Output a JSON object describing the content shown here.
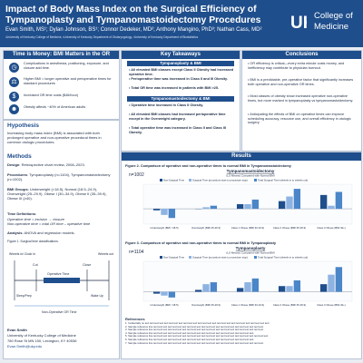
{
  "header": {
    "title": "Impact of Body Mass Index on the Surgical Efficiency of Tympanoplasty and Tympanomastoidectomy Procedures",
    "authors": "Evan Smith, MS¹; Dylan Johnson, BS¹; Connor Dedeker, MD²; Anthony Mangino, PhD³; Nathan Cass, MD²",
    "affiliations": "¹University of Kentucky College of Medicine, ²University of Kentucky Department of Otolaryngology, ³University of Kentucky Department of Biostatistics",
    "logo_line1": "College of",
    "logo_line2": "Medicine",
    "logo_icon": "uk-logo-icon"
  },
  "left": {
    "time_head": "Time is Money: BMI Matters in the OR",
    "time_bullets": [
      "Complications in anesthesia, positioning, exposure, and closure add time.",
      "Higher BMI = longer operative and perioperative times for standard procedures",
      "Increased OR time costs ($46/hour)",
      "Obesity affects ~40% of American adults"
    ],
    "hypothesis_head": "Hypothesis",
    "hypothesis_text": "Increasing body mass index (BMI) is associated with both prolonged operative and non-operative procedural times in common otologic procedures.",
    "methods_head": "Methods",
    "design_label": "Design",
    "design_text": ": Retrospective chart review, 2008–2023.",
    "procedures_label": "Procedures",
    "procedures_text": ": Tympanoplasty (n=1104), Tympanomastoidectomy (n=1002).",
    "groups_label": "BMI Groups",
    "groups_text": ": Underweight (<18.5), Normal (18.5–24.9), Overweight (25–29.9), Obese I (30–34.9), Obese II (35–39.9), Obese III (≥40).",
    "timedef_label": "Time Definitions",
    "timedef_1": "Operative time = incision → closure",
    "timedef_2": "Non-operative time = total OR time – operative time",
    "analysis_label": "Analysis",
    "analysis_text": ": ANOVA and regression models.",
    "fig_caption": "Figure 1. Surgical time classifications.",
    "fig_labels": {
      "in_room": "Wheels in/ Clock In",
      "out_room": "Wheels out",
      "cut": "Cut",
      "close": "Close",
      "operative": "Operative Time",
      "sleep": "Sleep/Prep",
      "wake": "Wake Up",
      "nonop": "Non-Operative OR Time"
    },
    "contact_name": "Evan Smith",
    "contact_lines": [
      "University of Kentucky College of Medicine",
      "780 Rose St MN 150, Lexington, KY 40536",
      "Evan.Smith@uky.edu"
    ]
  },
  "mid": {
    "head": "Key Takeaways",
    "tymp_head": "Tympanoplasty & BMI",
    "tymp_bullets": [
      "All elevated BMI classes except Class II Obesity had increased operative time.",
      "Perioperative time was increased in Class II and III Obesity.",
      "Total OR time was increased in patients with BMI >25."
    ],
    "mast_head": "Tympanomastoidectomy & BMI",
    "mast_bullets": [
      "Operative time increased in Class II Obesity.",
      "All elevated BMI classes had increased perioperative time except in the Overweight category.",
      "Total operative time was increased in Class II and Class III Obesity."
    ]
  },
  "right": {
    "head": "Conclusions",
    "bullets": [
      "OR efficiency is critical—every extra minute costs money, and inefficiency may contribute to physician burnout.",
      "BMI is a predictable, pre-operative factor that significantly increases both operative and non-operative OR times.",
      "Most classes of obesity show increased operative non-operative times, but more marked in tympanoplasty vs tympanomastoidectomy.",
      "Anticipating the effects of BMI on operative times can improve scheduling accuracy, resource use, and overall efficiency in otologic surgery."
    ]
  },
  "results": {
    "head": "Results",
    "references_head": "References",
    "references": [
      "1. Incidentally no text text text text text text text text text text text text text text text text text text text text text text text text text text.",
      "2. Sample reference line text text text text text text text text text text text text text text text text text text text text text text text.",
      "3. Sample reference line text text text text text text text text text text text text text text text text text text text text text text text.",
      "4. Sample reference line text text text text text text text text text text text text text text text text text text text text text.",
      "5. Sample reference line text text text text text text text text text text text text text text text text text text text text text text text text.",
      "6. Sample reference line text text text text text text text text text text text text text text text text text text text text text.",
      "7. Sample reference line text text text text text text text text text text text text text text text text text text text text text text text."
    ]
  },
  "chart_data": [
    {
      "type": "bar",
      "figure_caption": "Figure 2. Comparison of operative and non-operative times to normal BMI in Tympanomastoidectomy",
      "n_label": "n=1002",
      "title": "Tympanomastoidectomy",
      "subtitle": "(LS Means) Compared with Normal BMI",
      "categories": [
        "Underweight (BMI <18.5)",
        "Overweight (BMI 25-29.9)",
        "Class 1 Obese (BMI 30-34.9)",
        "Class 2 Obese (BMI 35-39.9)",
        "Class 3 Obese (BMI 40+)"
      ],
      "series": [
        {
          "name": "Non-Surgical Time",
          "values": [
            -1,
            0,
            3,
            5,
            9
          ],
          "color": "#1f4e8c"
        },
        {
          "name": "Surgical Time (procedure start to procedure stop)",
          "values": [
            -4,
            1,
            3,
            8,
            2
          ],
          "color": "#8db3e2"
        },
        {
          "name": "Total Surgical Time (wheels in to wheels out)",
          "values": [
            -6,
            2,
            6,
            13,
            11
          ],
          "color": "#4a86c8"
        }
      ],
      "ylim": [
        -10,
        16
      ],
      "zero_line": true
    },
    {
      "type": "bar",
      "figure_caption": "Figure 3. Comparison of operative and non-operative times to normal BMI in Tympanoplasty",
      "n_label": "n=1104",
      "title": "Tympanoplasty",
      "subtitle": "(LS Means) Compared with Normal BMI",
      "categories": [
        "Underweight (BMI <18.5)",
        "Overweight (BMI 25-29.9)",
        "Class 1 Obese (BMI 30-34.9)",
        "Class 2 Obese (BMI 35-39.9)",
        "Class 3 Obese (BMI 40+)"
      ],
      "series": [
        {
          "name": "Non-Surgical Time",
          "values": [
            -1,
            1,
            2,
            3,
            4
          ],
          "color": "#1f4e8c"
        },
        {
          "name": "Surgical Time (procedure start to procedure stop)",
          "values": [
            -2,
            4,
            5,
            3,
            9
          ],
          "color": "#8db3e2"
        },
        {
          "name": "Total Surgical Time (wheels in to wheels out)",
          "values": [
            -3,
            5,
            7,
            6,
            13
          ],
          "color": "#4a86c8"
        }
      ],
      "ylim": [
        -5,
        16
      ],
      "zero_line": true
    }
  ],
  "colors": {
    "navy": "#1f4e8c",
    "light": "#eef3fa",
    "bg": "#e9edf3"
  }
}
